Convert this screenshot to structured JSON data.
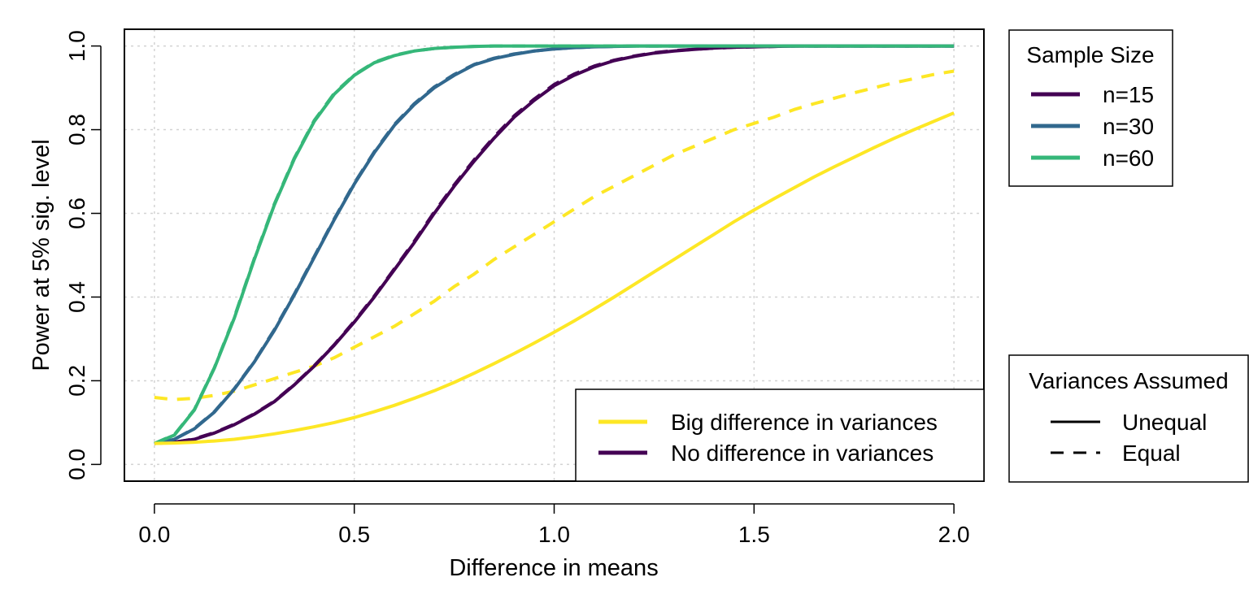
{
  "chart_data": {
    "type": "line",
    "title": "",
    "xlabel": "Difference in means",
    "ylabel": "Power at 5% sig. level",
    "xlim": [
      -0.075,
      2.075
    ],
    "ylim": [
      -0.04,
      1.04
    ],
    "x_ticks": [
      "0.0",
      "0.5",
      "1.0",
      "1.5",
      "2.0"
    ],
    "y_ticks": [
      "0.0",
      "0.2",
      "0.4",
      "0.6",
      "0.8",
      "1.0"
    ],
    "grid": true,
    "x": [
      0,
      0.05,
      0.1,
      0.15,
      0.2,
      0.25,
      0.3,
      0.35,
      0.4,
      0.45,
      0.5,
      0.55,
      0.6,
      0.65,
      0.7,
      0.75,
      0.8,
      0.85,
      0.9,
      0.95,
      1.0,
      1.05,
      1.1,
      1.15,
      1.2,
      1.25,
      1.3,
      1.35,
      1.4,
      1.45,
      1.5,
      1.55,
      1.6,
      1.65,
      1.7,
      1.75,
      1.8,
      1.85,
      1.9,
      1.95,
      2.0
    ],
    "colors": {
      "big_variance_diff": "#FDE725",
      "no_variance_diff": "#440154",
      "n15": "#440154",
      "n30": "#31688E",
      "n60": "#35B779"
    },
    "series": [
      {
        "group": "no_variance_diff",
        "sample": "n15",
        "variances": "unequal",
        "values": [
          0.05,
          0.053,
          0.06,
          0.075,
          0.095,
          0.12,
          0.15,
          0.19,
          0.235,
          0.285,
          0.34,
          0.4,
          0.465,
          0.53,
          0.6,
          0.665,
          0.725,
          0.78,
          0.83,
          0.87,
          0.905,
          0.93,
          0.95,
          0.965,
          0.975,
          0.983,
          0.988,
          0.992,
          0.995,
          0.997,
          0.998,
          0.999,
          1.0,
          1.0,
          1.0,
          1.0,
          1.0,
          1.0,
          1.0,
          1.0,
          1.0
        ]
      },
      {
        "group": "no_variance_diff",
        "sample": "n15",
        "variances": "equal",
        "values": [
          0.05,
          0.053,
          0.061,
          0.076,
          0.096,
          0.121,
          0.151,
          0.191,
          0.236,
          0.286,
          0.342,
          0.402,
          0.467,
          0.533,
          0.603,
          0.668,
          0.728,
          0.783,
          0.833,
          0.873,
          0.908,
          0.933,
          0.952,
          0.966,
          0.976,
          0.984,
          0.989,
          0.992,
          0.995,
          0.997,
          0.998,
          0.999,
          1.0,
          1.0,
          1.0,
          1.0,
          1.0,
          1.0,
          1.0,
          1.0,
          1.0
        ]
      },
      {
        "group": "no_variance_diff",
        "sample": "n30",
        "variances": "unequal",
        "values": [
          0.05,
          0.06,
          0.085,
          0.125,
          0.18,
          0.245,
          0.32,
          0.405,
          0.495,
          0.585,
          0.67,
          0.745,
          0.81,
          0.86,
          0.9,
          0.93,
          0.955,
          0.97,
          0.98,
          0.988,
          0.993,
          0.996,
          0.998,
          0.999,
          1.0,
          1.0,
          1.0,
          1.0,
          1.0,
          1.0,
          1.0,
          1.0,
          1.0,
          1.0,
          1.0,
          1.0,
          1.0,
          1.0,
          1.0,
          1.0,
          1.0
        ]
      },
      {
        "group": "no_variance_diff",
        "sample": "n30",
        "variances": "equal",
        "values": [
          0.05,
          0.06,
          0.086,
          0.126,
          0.181,
          0.246,
          0.322,
          0.407,
          0.497,
          0.587,
          0.672,
          0.747,
          0.812,
          0.862,
          0.902,
          0.932,
          0.956,
          0.971,
          0.981,
          0.988,
          0.993,
          0.996,
          0.998,
          0.999,
          1.0,
          1.0,
          1.0,
          1.0,
          1.0,
          1.0,
          1.0,
          1.0,
          1.0,
          1.0,
          1.0,
          1.0,
          1.0,
          1.0,
          1.0,
          1.0,
          1.0
        ]
      },
      {
        "group": "no_variance_diff",
        "sample": "n60",
        "variances": "unequal",
        "values": [
          0.05,
          0.07,
          0.13,
          0.23,
          0.35,
          0.49,
          0.62,
          0.73,
          0.82,
          0.885,
          0.93,
          0.96,
          0.977,
          0.988,
          0.994,
          0.997,
          0.999,
          1.0,
          1.0,
          1.0,
          1.0,
          1.0,
          1.0,
          1.0,
          1.0,
          1.0,
          1.0,
          1.0,
          1.0,
          1.0,
          1.0,
          1.0,
          1.0,
          1.0,
          1.0,
          1.0,
          1.0,
          1.0,
          1.0,
          1.0,
          1.0
        ]
      },
      {
        "group": "no_variance_diff",
        "sample": "n60",
        "variances": "equal",
        "values": [
          0.05,
          0.071,
          0.131,
          0.231,
          0.352,
          0.492,
          0.622,
          0.732,
          0.822,
          0.887,
          0.931,
          0.961,
          0.978,
          0.988,
          0.994,
          0.997,
          0.999,
          1.0,
          1.0,
          1.0,
          1.0,
          1.0,
          1.0,
          1.0,
          1.0,
          1.0,
          1.0,
          1.0,
          1.0,
          1.0,
          1.0,
          1.0,
          1.0,
          1.0,
          1.0,
          1.0,
          1.0,
          1.0,
          1.0,
          1.0,
          1.0
        ]
      },
      {
        "group": "big_variance_diff",
        "sample": "n15",
        "variances": "unequal",
        "values": [
          0.05,
          0.051,
          0.053,
          0.056,
          0.06,
          0.066,
          0.073,
          0.081,
          0.09,
          0.1,
          0.112,
          0.126,
          0.141,
          0.158,
          0.176,
          0.196,
          0.218,
          0.241,
          0.265,
          0.29,
          0.316,
          0.343,
          0.371,
          0.4,
          0.43,
          0.46,
          0.49,
          0.52,
          0.55,
          0.58,
          0.608,
          0.635,
          0.661,
          0.687,
          0.711,
          0.734,
          0.757,
          0.779,
          0.8,
          0.82,
          0.84
        ]
      },
      {
        "group": "big_variance_diff",
        "sample": "n15",
        "variances": "equal",
        "values": [
          0.16,
          0.155,
          0.158,
          0.165,
          0.175,
          0.19,
          0.205,
          0.22,
          0.235,
          0.255,
          0.28,
          0.305,
          0.33,
          0.36,
          0.39,
          0.425,
          0.455,
          0.49,
          0.52,
          0.55,
          0.58,
          0.61,
          0.64,
          0.665,
          0.69,
          0.715,
          0.74,
          0.76,
          0.78,
          0.8,
          0.815,
          0.83,
          0.848,
          0.862,
          0.875,
          0.888,
          0.9,
          0.912,
          0.922,
          0.932,
          0.94
        ]
      }
    ],
    "legend_main": {
      "position": "bottom-right",
      "items": [
        {
          "label": "Big difference in variances",
          "color": "#FDE725"
        },
        {
          "label": "No difference in variances",
          "color": "#440154"
        }
      ]
    },
    "legend_sample": {
      "position": "top-right (outside)",
      "title": "Sample Size",
      "items": [
        {
          "label": "n=15",
          "color": "#440154"
        },
        {
          "label": "n=30",
          "color": "#31688E"
        },
        {
          "label": "n=60",
          "color": "#35B779"
        }
      ]
    },
    "legend_variances": {
      "position": "bottom-right (outside)",
      "title": "Variances Assumed",
      "items": [
        {
          "label": "Unequal",
          "style": "solid"
        },
        {
          "label": "Equal",
          "style": "dashed"
        }
      ]
    }
  }
}
